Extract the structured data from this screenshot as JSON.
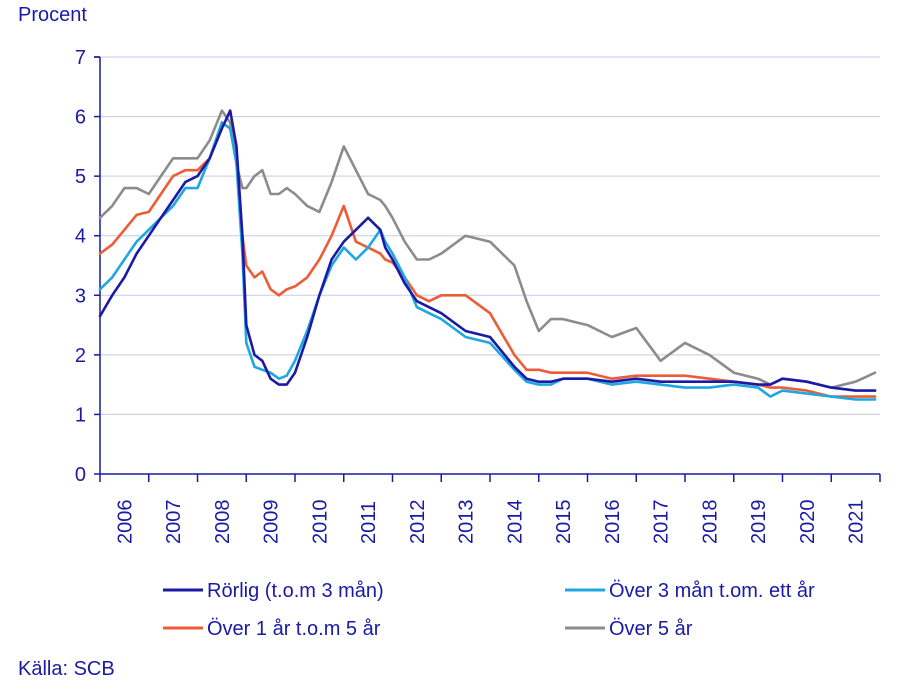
{
  "chart_data": {
    "type": "line",
    "ylabel": "Procent",
    "source": "Källa: SCB",
    "ylim": [
      0,
      7
    ],
    "yticks": [
      "0",
      "1",
      "2",
      "3",
      "4",
      "5",
      "6",
      "7"
    ],
    "x_range": [
      2006.0,
      2022.0
    ],
    "xtick_labels": [
      "2006",
      "2007",
      "2008",
      "2009",
      "2010",
      "2011",
      "2012",
      "2013",
      "2014",
      "2015",
      "2016",
      "2017",
      "2018",
      "2019",
      "2020",
      "2021"
    ],
    "grid": "horizontal",
    "legend_position": "bottom",
    "series": [
      {
        "name": "Rörlig (t.o.m 3 mån)",
        "color": "#1a1aa6",
        "x": [
          2006.0,
          2006.25,
          2006.5,
          2006.75,
          2007.0,
          2007.25,
          2007.5,
          2007.75,
          2008.0,
          2008.25,
          2008.5,
          2008.67,
          2008.8,
          2008.92,
          2009.0,
          2009.17,
          2009.33,
          2009.5,
          2009.67,
          2009.83,
          2010.0,
          2010.25,
          2010.5,
          2010.75,
          2011.0,
          2011.25,
          2011.5,
          2011.75,
          2011.85,
          2012.0,
          2012.25,
          2012.5,
          2012.75,
          2013.0,
          2013.5,
          2014.0,
          2014.5,
          2014.75,
          2015.0,
          2015.25,
          2015.5,
          2016.0,
          2016.5,
          2017.0,
          2017.5,
          2018.0,
          2018.5,
          2019.0,
          2019.5,
          2019.75,
          2020.0,
          2020.5,
          2021.0,
          2021.5,
          2021.9
        ],
        "y": [
          2.65,
          3.0,
          3.3,
          3.7,
          4.0,
          4.3,
          4.6,
          4.9,
          5.0,
          5.3,
          5.8,
          6.1,
          5.5,
          4.0,
          2.5,
          2.0,
          1.9,
          1.6,
          1.5,
          1.5,
          1.7,
          2.3,
          3.0,
          3.6,
          3.9,
          4.1,
          4.3,
          4.1,
          3.8,
          3.6,
          3.2,
          2.9,
          2.8,
          2.7,
          2.4,
          2.3,
          1.8,
          1.6,
          1.55,
          1.55,
          1.6,
          1.6,
          1.55,
          1.6,
          1.55,
          1.55,
          1.55,
          1.55,
          1.5,
          1.5,
          1.6,
          1.55,
          1.45,
          1.4,
          1.4
        ]
      },
      {
        "name": "Över 3 mån t.om. ett år",
        "color": "#1fa7df",
        "x": [
          2006.0,
          2006.25,
          2006.5,
          2006.75,
          2007.0,
          2007.25,
          2007.5,
          2007.75,
          2008.0,
          2008.25,
          2008.5,
          2008.67,
          2008.8,
          2008.92,
          2009.0,
          2009.17,
          2009.33,
          2009.5,
          2009.67,
          2009.83,
          2010.0,
          2010.25,
          2010.5,
          2010.75,
          2011.0,
          2011.25,
          2011.5,
          2011.75,
          2011.85,
          2012.0,
          2012.25,
          2012.5,
          2012.75,
          2013.0,
          2013.5,
          2014.0,
          2014.5,
          2014.75,
          2015.0,
          2015.25,
          2015.5,
          2016.0,
          2016.5,
          2017.0,
          2017.5,
          2018.0,
          2018.5,
          2019.0,
          2019.5,
          2019.75,
          2020.0,
          2020.5,
          2021.0,
          2021.5,
          2021.9
        ],
        "y": [
          3.1,
          3.3,
          3.6,
          3.9,
          4.1,
          4.3,
          4.5,
          4.8,
          4.8,
          5.3,
          5.9,
          5.8,
          5.2,
          3.7,
          2.2,
          1.8,
          1.75,
          1.7,
          1.6,
          1.65,
          1.9,
          2.4,
          3.0,
          3.5,
          3.8,
          3.6,
          3.8,
          4.1,
          3.9,
          3.7,
          3.3,
          2.8,
          2.7,
          2.6,
          2.3,
          2.2,
          1.75,
          1.55,
          1.5,
          1.5,
          1.6,
          1.6,
          1.5,
          1.55,
          1.5,
          1.45,
          1.45,
          1.5,
          1.45,
          1.3,
          1.4,
          1.35,
          1.3,
          1.25,
          1.25
        ]
      },
      {
        "name": "Över 1 år t.o.m 5 år",
        "color": "#ee5c37",
        "x": [
          2006.0,
          2006.25,
          2006.5,
          2006.75,
          2007.0,
          2007.25,
          2007.5,
          2007.75,
          2008.0,
          2008.25,
          2008.5,
          2008.67,
          2008.8,
          2008.92,
          2009.0,
          2009.17,
          2009.33,
          2009.5,
          2009.67,
          2009.83,
          2010.0,
          2010.25,
          2010.5,
          2010.75,
          2011.0,
          2011.25,
          2011.5,
          2011.75,
          2011.85,
          2012.0,
          2012.25,
          2012.5,
          2012.75,
          2013.0,
          2013.5,
          2014.0,
          2014.5,
          2014.75,
          2015.0,
          2015.25,
          2015.5,
          2016.0,
          2016.5,
          2017.0,
          2017.5,
          2018.0,
          2018.5,
          2019.0,
          2019.5,
          2019.75,
          2020.0,
          2020.5,
          2021.0,
          2021.5,
          2021.9
        ],
        "y": [
          3.7,
          3.85,
          4.1,
          4.35,
          4.4,
          4.7,
          5.0,
          5.1,
          5.1,
          5.3,
          5.9,
          5.8,
          5.3,
          4.0,
          3.5,
          3.3,
          3.4,
          3.1,
          3.0,
          3.1,
          3.15,
          3.3,
          3.6,
          4.0,
          4.5,
          3.9,
          3.8,
          3.7,
          3.6,
          3.55,
          3.3,
          3.0,
          2.9,
          3.0,
          3.0,
          2.7,
          2.0,
          1.75,
          1.75,
          1.7,
          1.7,
          1.7,
          1.6,
          1.65,
          1.65,
          1.65,
          1.6,
          1.55,
          1.5,
          1.45,
          1.45,
          1.4,
          1.3,
          1.3,
          1.3
        ]
      },
      {
        "name": "Över 5 år",
        "color": "#8c8c8c",
        "x": [
          2006.0,
          2006.25,
          2006.5,
          2006.75,
          2007.0,
          2007.25,
          2007.5,
          2007.75,
          2008.0,
          2008.25,
          2008.5,
          2008.67,
          2008.8,
          2008.92,
          2009.0,
          2009.17,
          2009.33,
          2009.5,
          2009.67,
          2009.83,
          2010.0,
          2010.25,
          2010.5,
          2010.75,
          2011.0,
          2011.25,
          2011.5,
          2011.75,
          2011.85,
          2012.0,
          2012.25,
          2012.5,
          2012.75,
          2013.0,
          2013.5,
          2014.0,
          2014.5,
          2014.75,
          2015.0,
          2015.25,
          2015.5,
          2016.0,
          2016.5,
          2017.0,
          2017.5,
          2018.0,
          2018.5,
          2019.0,
          2019.5,
          2019.75,
          2020.0,
          2020.5,
          2021.0,
          2021.5,
          2021.9
        ],
        "y": [
          4.3,
          4.5,
          4.8,
          4.8,
          4.7,
          5.0,
          5.3,
          5.3,
          5.3,
          5.6,
          6.1,
          5.9,
          5.2,
          4.8,
          4.8,
          5.0,
          5.1,
          4.7,
          4.7,
          4.8,
          4.7,
          4.5,
          4.4,
          4.9,
          5.5,
          5.1,
          4.7,
          4.6,
          4.5,
          4.3,
          3.9,
          3.6,
          3.6,
          3.7,
          4.0,
          3.9,
          3.5,
          2.9,
          2.4,
          2.6,
          2.6,
          2.5,
          2.3,
          2.45,
          1.9,
          2.2,
          2.0,
          1.7,
          1.6,
          1.5,
          1.6,
          1.55,
          1.45,
          1.55,
          1.7
        ]
      }
    ]
  }
}
